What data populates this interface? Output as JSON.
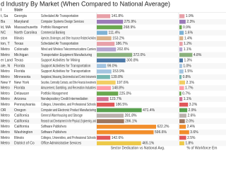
{
  "chart_data": {
    "type": "bar-table",
    "title": "d Industry By Market (When Compared to National Average)",
    "headers": [
      "l",
      "State"
    ],
    "x_label": "Sector Dedication vs National Avg.",
    "x2_label": "% of Workforce Em",
    "xlim": [
      0,
      800
    ],
    "x2lim": [
      0,
      12
    ],
    "rows": [
      {
        "metro": "t, Sa",
        "state": "Georgia",
        "industry": "Scheduled Air Transportation",
        "dedication": 141.8,
        "dedication_label": "141.8%",
        "share": 1.9,
        "share_label": "1.9%",
        "color": "#e8a0a8"
      },
      {
        "metro": "Ba",
        "state": "Maryland",
        "industry": "Computer Systems Design Services",
        "dedication": 275.9,
        "dedication_label": "275.9%",
        "share": 2.3,
        "share_label": "2.3%",
        "color": "#9b7bb8"
      },
      {
        "metro": "ld, MA",
        "state": "Massachusetts",
        "industry": "Portfolio Management",
        "dedication": 268.9,
        "dedication_label": "268.9%",
        "share": 0.9,
        "share_label": "0.9%",
        "color": "#6aa84f"
      },
      {
        "metro": "NC",
        "state": "North Carolina",
        "industry": "Commercial Banking",
        "dedication": 111.4,
        "dedication_label": "111.4%",
        "share": 1.6,
        "share_label": "1.6%",
        "color": "#7fb3d5"
      },
      {
        "metro": "ston",
        "state": "Illinois",
        "industry": "Agencies, Brokerages, and Other Insurance Related Activities",
        "dedication": 153.2,
        "dedication_label": "153.2%",
        "share": 1.4,
        "share_label": "1.4%",
        "color": "#d9b38c"
      },
      {
        "metro": "ton, T",
        "state": "Texas",
        "industry": "Scheduled Air Transportation",
        "dedication": 186.7,
        "dedication_label": "186.7%",
        "share": 1.2,
        "share_label": "1.2%",
        "color": "#e8a0a8"
      },
      {
        "metro": "Metro",
        "state": "Colorado",
        "industry": "Wired and Wireless Telecommunications Carriers",
        "dedication": 202.6,
        "dedication_label": "202.6%",
        "share": 1.1,
        "share_label": "1.1%",
        "color": "#b5a6d0"
      },
      {
        "metro": "Metro",
        "state": "Michigan",
        "industry": "Transportation Equipment Manufacturing",
        "dedication": 372.0,
        "dedication_label": "372.0%",
        "share": 4.8,
        "share_label": "4.8%",
        "color": "#8ab17d"
      },
      {
        "metro": "er Land",
        "state": "Texas",
        "industry": "Support Activities for Mining",
        "dedication": 300.8,
        "dedication_label": "300.8%",
        "share": 1.3,
        "share_label": "1.3%",
        "color": "#4e79a7"
      },
      {
        "metro": "ale, N",
        "state": "Florida",
        "industry": "Support Activities for Transportation",
        "dedication": 99.0,
        "dedication_label": "99.0%",
        "share": 1.0,
        "share_label": "1.0%",
        "color": "#a3c4e0"
      },
      {
        "metro": "Metro",
        "state": "Florida",
        "industry": "Support Activities for Transportation",
        "dedication": 153.9,
        "dedication_label": "153.9%",
        "share": 1.5,
        "share_label": "1.5%",
        "color": "#a3c4e0"
      },
      {
        "metro": "Metro",
        "state": "Minnesota",
        "industry": "Navigational, Measuring, Electromedical and Control Instruments",
        "dedication": 139.8,
        "dedication_label": "139.8%",
        "share": 0.8,
        "share_label": "0.8%",
        "color": "#76b7b2"
      },
      {
        "metro": "New Y",
        "state": "New York",
        "industry": "Securities, Commodity Contracts, and Other Financial Investments",
        "dedication": 197.6,
        "dedication_label": "197.6%",
        "share": 2.1,
        "share_label": "2.1%",
        "color": "#f1ce63"
      },
      {
        "metro": "Metro",
        "state": "Florida",
        "industry": "Amusement, Gambling, and Recreation Industries",
        "dedication": 148.8,
        "dedication_label": "148.8%",
        "share": 1.7,
        "share_label": "1.7%",
        "color": "#ff9da7"
      },
      {
        "metro": "Metro",
        "state": "Delaware",
        "industry": "Portfolio Management",
        "dedication": 225.0,
        "dedication_label": "225.0%",
        "share": 0.7,
        "share_label": "0.7%",
        "color": "#6aa84f"
      },
      {
        "metro": "Metro",
        "state": "Arizona",
        "industry": "Nondepository Credit Intermediation",
        "dedication": 123.7,
        "dedication_label": "123.7%",
        "share": 1.1,
        "share_label": "1.1%",
        "color": "#d37295"
      },
      {
        "metro": "Metro",
        "state": "Pennsylvania",
        "industry": "Colleges, Universities, and Professional Schools",
        "dedication": 186.5,
        "dedication_label": "186.5%",
        "share": 3.2,
        "share_label": "3.2%",
        "color": "#e15759"
      },
      {
        "metro": "OR",
        "state": "Oregon",
        "industry": "Computer and Electronic Product Manufacturing",
        "dedication": 471.4,
        "dedication_label": "471.4%",
        "share": 2.9,
        "share_label": "2.9%",
        "color": "#59a14f"
      },
      {
        "metro": "Metro",
        "state": "California",
        "industry": "General Warehousing and Storage",
        "dedication": 281.8,
        "dedication_label": "281.8%",
        "share": 2.6,
        "share_label": "2.6%",
        "color": "#bab0ac"
      },
      {
        "metro": "Metro",
        "state": "California",
        "industry": "Research and Development in the Physical, Engineering, and",
        "dedication": 286.1,
        "dedication_label": "286.1%",
        "share": 2.0,
        "share_label": "2.0%",
        "color": "#9c755f"
      },
      {
        "metro": "Metro",
        "state": "California",
        "industry": "Software Publishers",
        "dedication": 622.2,
        "dedication_label": "622.2%",
        "share": 2.4,
        "share_label": "2.4%",
        "color": "#f28e2b"
      },
      {
        "metro": "Metro",
        "state": "Washington",
        "industry": "Software Publishers",
        "dedication": 596.6,
        "dedication_label": "596.6%",
        "share": 3.6,
        "share_label": "3.6%",
        "color": "#f28e2b"
      },
      {
        "metro": "Metro",
        "state": "Illinois",
        "industry": "Colleges, Universities, and Professional Schools",
        "dedication": 142.6,
        "dedication_label": "142.6%",
        "share": 2.5,
        "share_label": "2.5%",
        "color": "#e15759"
      },
      {
        "metro": "Metro",
        "state": "District of Co",
        "industry": "Office Administrative Services",
        "dedication": 465.1,
        "dedication_label": "465.1%",
        "share": 1.8,
        "share_label": "1.8%",
        "color": "#edc948"
      }
    ]
  }
}
